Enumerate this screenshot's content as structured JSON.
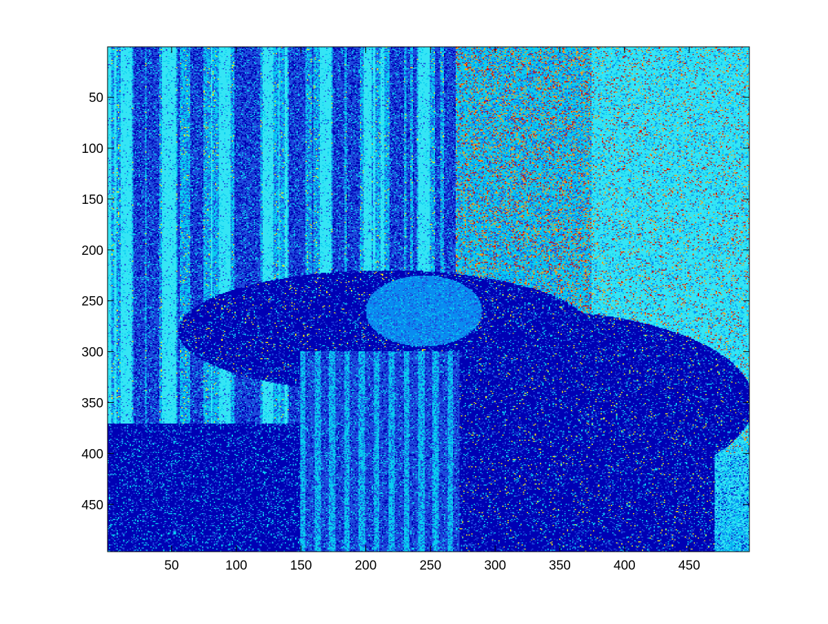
{
  "chart_data": {
    "type": "heatmap",
    "title": "",
    "xlabel": "",
    "ylabel": "",
    "xlim": [
      0.5,
      496.5
    ],
    "ylim": [
      0.5,
      496.5
    ],
    "y_direction": "reverse",
    "grid": false,
    "legend": "none",
    "colormap": "jet",
    "x_ticks": [
      50,
      100,
      150,
      200,
      250,
      300,
      350,
      400,
      450
    ],
    "x_tick_labels": [
      "50",
      "100",
      "150",
      "200",
      "250",
      "300",
      "350",
      "400",
      "450"
    ],
    "y_ticks": [
      50,
      100,
      150,
      200,
      250,
      300,
      350,
      400,
      450
    ],
    "y_tick_labels": [
      "50",
      "100",
      "150",
      "200",
      "250",
      "300",
      "350",
      "400",
      "450"
    ],
    "image_width": 496,
    "image_height": 496,
    "dominant_colors": {
      "dark_blue": "#0000b4",
      "medium_blue": "#1e4adc",
      "azure": "#0a8cf0",
      "cyan": "#0acdf0",
      "light_cyan": "#35e5f5",
      "yellow": "#f0e61e",
      "orange": "#f0a01e",
      "red": "#c81414"
    }
  }
}
